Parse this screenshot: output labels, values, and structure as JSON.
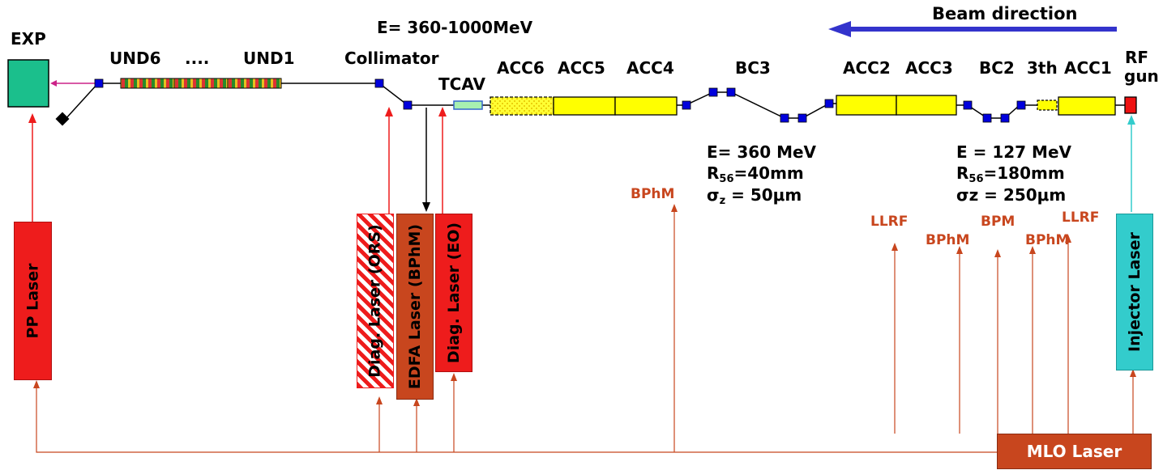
{
  "title": "E= 360-1000MeV",
  "beam_direction": "Beam direction",
  "elements": {
    "exp": "EXP",
    "und6": "UND6",
    "dots": "....",
    "und1": "UND1",
    "collimator": "Collimator",
    "tcav": "TCAV",
    "acc6": "ACC6",
    "acc5": "ACC5",
    "acc4": "ACC4",
    "bc3": "BC3",
    "acc2": "ACC2",
    "acc3": "ACC3",
    "bc2": "BC2",
    "third": "3th",
    "acc1": "ACC1",
    "rf": "RF",
    "gun": "gun"
  },
  "bc3_params": {
    "energy": "E= 360 MeV",
    "r_prefix": "R",
    "r_sub": "56",
    "r_value": "=40mm",
    "sigma_prefix": "σ",
    "sigma_sub": "z",
    "sigma_value": " = 50μm"
  },
  "bc2_params": {
    "energy": "E = 127 MeV",
    "r_prefix": "R",
    "r_sub": "56",
    "r_value": "=180mm",
    "sigma": "σz = 250μm"
  },
  "diagnostics": {
    "bphm_mid": "BPhM",
    "llrf_1": "LLRF",
    "bphm_1": "BPhM",
    "bpm": "BPM",
    "bphm_2": "BPhM",
    "llrf_2": "LLRF"
  },
  "lasers": {
    "pp": "PP Laser",
    "diag_ors": "Diag. Laser (ORS)",
    "edfa": "EDFA Laser (BPhM)",
    "diag_eo": "Diag. Laser (EO)",
    "injector": "Injector Laser",
    "mlo": "MLO Laser"
  },
  "colors": {
    "exp": "#1bbf8c",
    "accelerator": "#ffff00",
    "tcav": "#a8f0b0",
    "magnet": "#0000dd",
    "laser_red": "#ee1c1c",
    "laser_brown": "#c8461e",
    "injector": "#33cccc",
    "beam_arrow": "#3333cc",
    "fiber": "#c8461e"
  }
}
